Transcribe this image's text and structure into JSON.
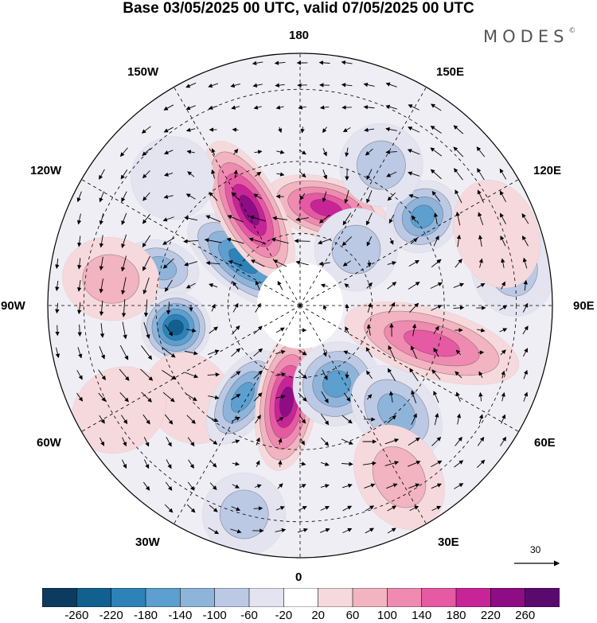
{
  "title": "Base 03/05/2025 00 UTC, valid 07/05/2025 00 UTC",
  "brand": "MODES",
  "brand_mark": "©",
  "longitude_labels": [
    "180",
    "150E",
    "120E",
    "90E",
    "60E",
    "30E",
    "0",
    "30W",
    "60W",
    "90W",
    "120W",
    "150W"
  ],
  "vector_scale_label": "30",
  "colorbar": {
    "tick_labels": [
      "-260",
      "-220",
      "-180",
      "-140",
      "-100",
      "-60",
      "-20",
      "20",
      "60",
      "100",
      "140",
      "180",
      "220",
      "260"
    ],
    "colors": [
      "#0d3b5f",
      "#11608f",
      "#2d82b8",
      "#5d9fce",
      "#8fb4da",
      "#bcc9e4",
      "#e3e4f0",
      "#ffffff",
      "#f6d9dc",
      "#f2b4c0",
      "#ef8bb0",
      "#e55aa3",
      "#c72597",
      "#8e0d84",
      "#5a0a6e"
    ]
  },
  "anomaly_centers": [
    {
      "lon": 165,
      "colat": 28,
      "value": 180,
      "sx": 0.45,
      "sy": 0.22
    },
    {
      "lon": -128,
      "colat": 20,
      "value": -200,
      "sx": 0.22,
      "sy": 0.48
    },
    {
      "lon": -152,
      "colat": 30,
      "value": 220,
      "sx": 0.23,
      "sy": 0.55
    },
    {
      "lon": -105,
      "colat": 40,
      "value": -100,
      "sx": 0.2,
      "sy": 0.28
    },
    {
      "lon": -98,
      "colat": 53,
      "value": 60,
      "sx": 0.3,
      "sy": 0.35
    },
    {
      "lon": -80,
      "colat": 35,
      "value": -220,
      "sx": 0.25,
      "sy": 0.25
    },
    {
      "lon": -50,
      "colat": 40,
      "value": 40,
      "sx": 0.35,
      "sy": 0.3
    },
    {
      "lon": -32,
      "colat": 30,
      "value": -140,
      "sx": 0.2,
      "sy": 0.38
    },
    {
      "lon": -8,
      "colat": 27,
      "value": 220,
      "sx": 0.22,
      "sy": 0.5
    },
    {
      "lon": 25,
      "colat": 24,
      "value": -140,
      "sx": 0.32,
      "sy": 0.3
    },
    {
      "lon": 42,
      "colat": 40,
      "value": -130,
      "sx": 0.28,
      "sy": 0.38
    },
    {
      "lon": 74,
      "colat": 38,
      "value": 160,
      "sx": 0.25,
      "sy": 0.65
    },
    {
      "lon": 100,
      "colat": 60,
      "value": -80,
      "sx": 0.35,
      "sy": 0.3
    },
    {
      "lon": 126,
      "colat": 42,
      "value": -150,
      "sx": 0.25,
      "sy": 0.28
    },
    {
      "lon": 110,
      "colat": 58,
      "value": 40,
      "sx": 0.4,
      "sy": 0.3
    },
    {
      "lon": 135,
      "colat": 22,
      "value": -80,
      "sx": 0.3,
      "sy": 0.3
    },
    {
      "lon": 150,
      "colat": 45,
      "value": -60,
      "sx": 0.3,
      "sy": 0.3
    },
    {
      "lon": 30,
      "colat": 55,
      "value": 60,
      "sx": 0.3,
      "sy": 0.4
    },
    {
      "lon": -15,
      "colat": 60,
      "value": -60,
      "sx": 0.3,
      "sy": 0.3
    },
    {
      "lon": -135,
      "colat": 50,
      "value": -40,
      "sx": 0.3,
      "sy": 0.3
    },
    {
      "lon": -60,
      "colat": 58,
      "value": 50,
      "sx": 0.3,
      "sy": 0.35
    }
  ]
}
